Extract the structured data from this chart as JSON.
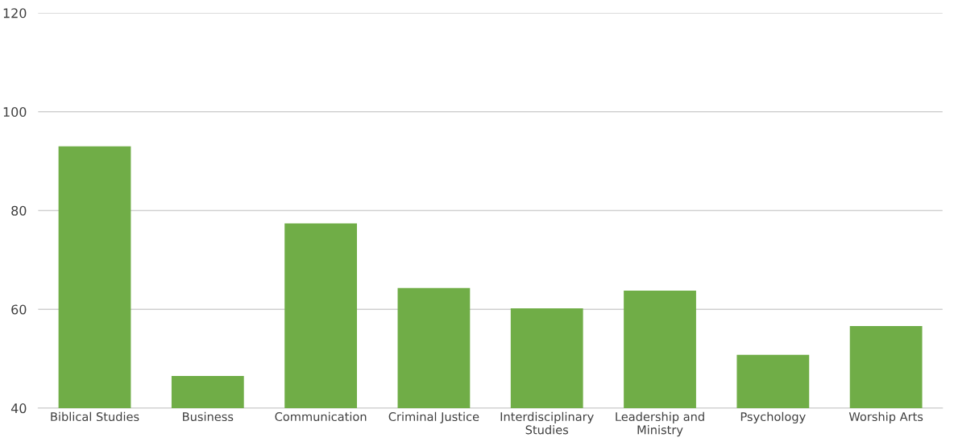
{
  "chart_data": {
    "type": "bar",
    "categories": [
      "Biblical Studies",
      "Business",
      "Communication",
      "Criminal Justice",
      "Interdisciplinary\nStudies",
      "Leadership and\nMinistry",
      "Psychology",
      "Worship Arts"
    ],
    "values": [
      93.0,
      46.5,
      77.4,
      64.3,
      60.2,
      63.8,
      50.8,
      56.6
    ],
    "color": "#70ad47",
    "ylim": [
      40,
      120
    ],
    "yticks": [
      40,
      60,
      80,
      100,
      120
    ],
    "grid": "y",
    "legend": false
  }
}
